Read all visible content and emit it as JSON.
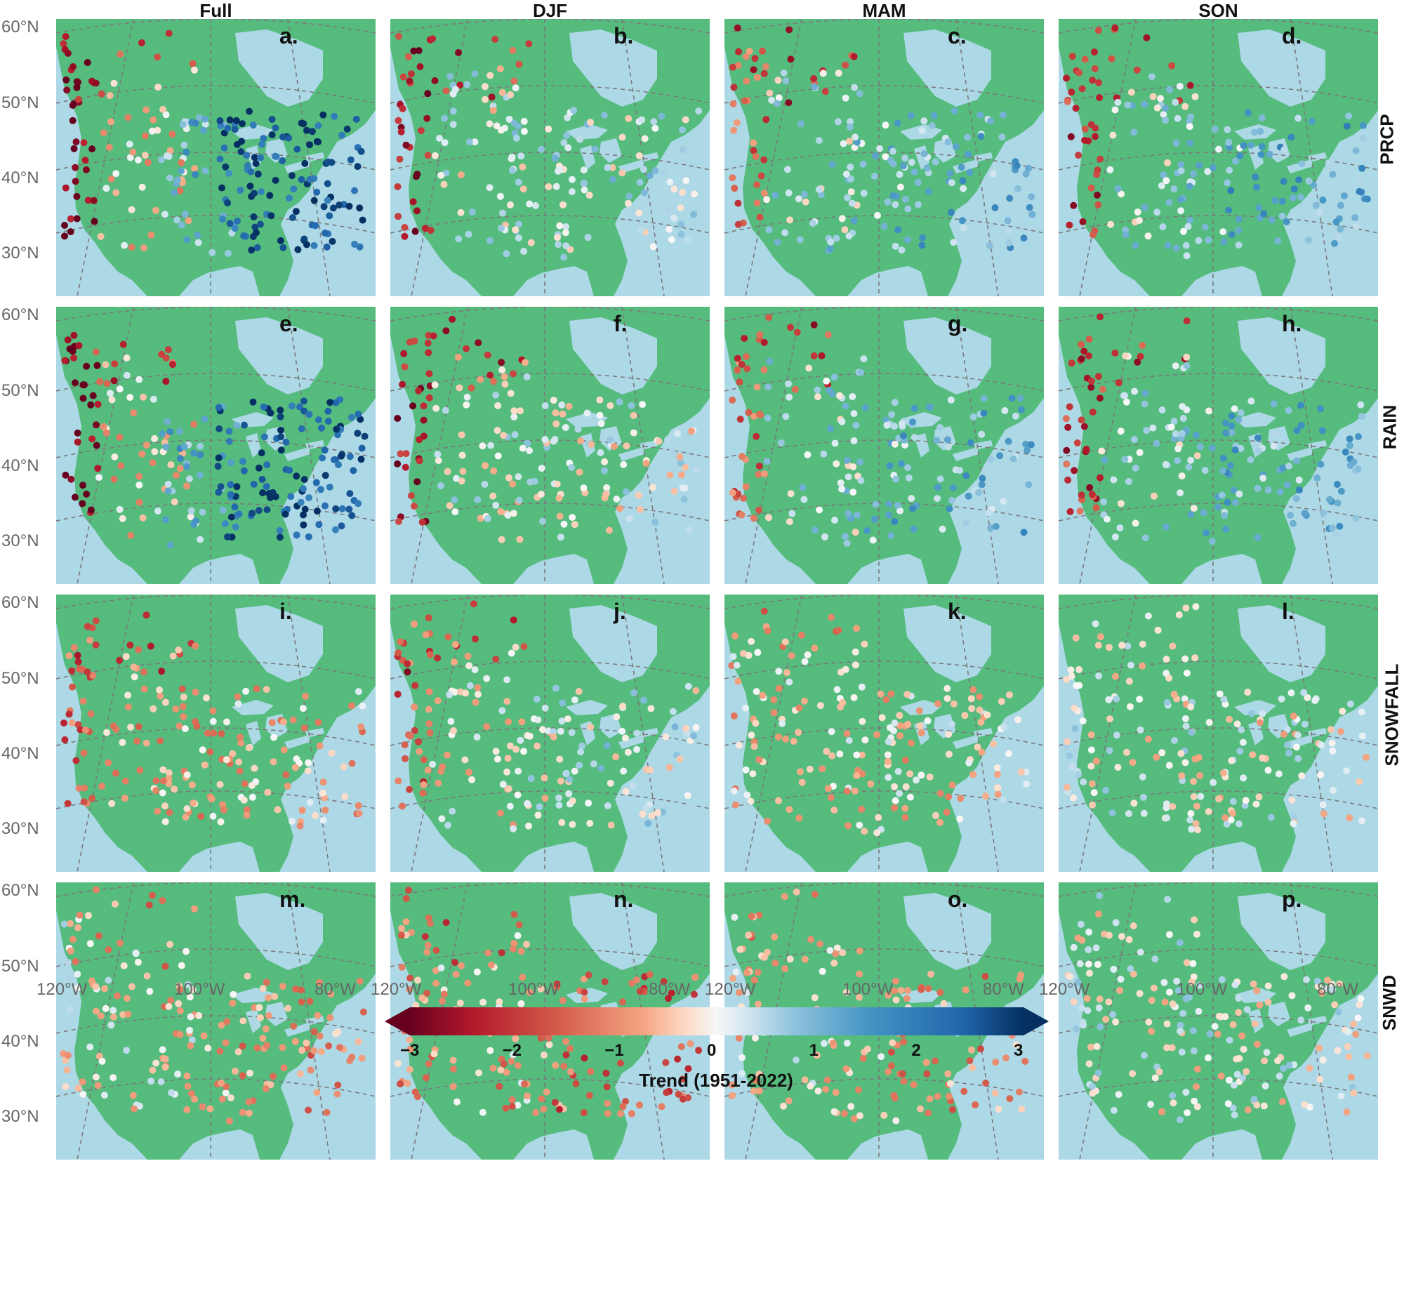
{
  "columns": [
    "Full",
    "DJF",
    "MAM",
    "SON"
  ],
  "rows": [
    "PRCP",
    "RAIN",
    "SNOWFALL",
    "SNWD"
  ],
  "panel_letters": [
    "a.",
    "b.",
    "c.",
    "d.",
    "e.",
    "f.",
    "g.",
    "h.",
    "i.",
    "j.",
    "k.",
    "l.",
    "m.",
    "n.",
    "o.",
    "p."
  ],
  "lat_labels": [
    "60°N",
    "50°N",
    "40°N",
    "30°N"
  ],
  "lon_labels": [
    "120°W",
    "100°W",
    "80°W"
  ],
  "colorbar": {
    "title": "Trend (1951-2022)",
    "ticks": [
      "−3",
      "−2",
      "−1",
      "0",
      "1",
      "2",
      "3"
    ],
    "range": [
      -3,
      3
    ],
    "extend": "both",
    "colormap": "RdBu"
  },
  "colors": {
    "land": "#55bc7e",
    "water": "#add8e6",
    "graticule": "#7a7a7a",
    "station_fill_neutral": "#f7f7f7"
  }
}
